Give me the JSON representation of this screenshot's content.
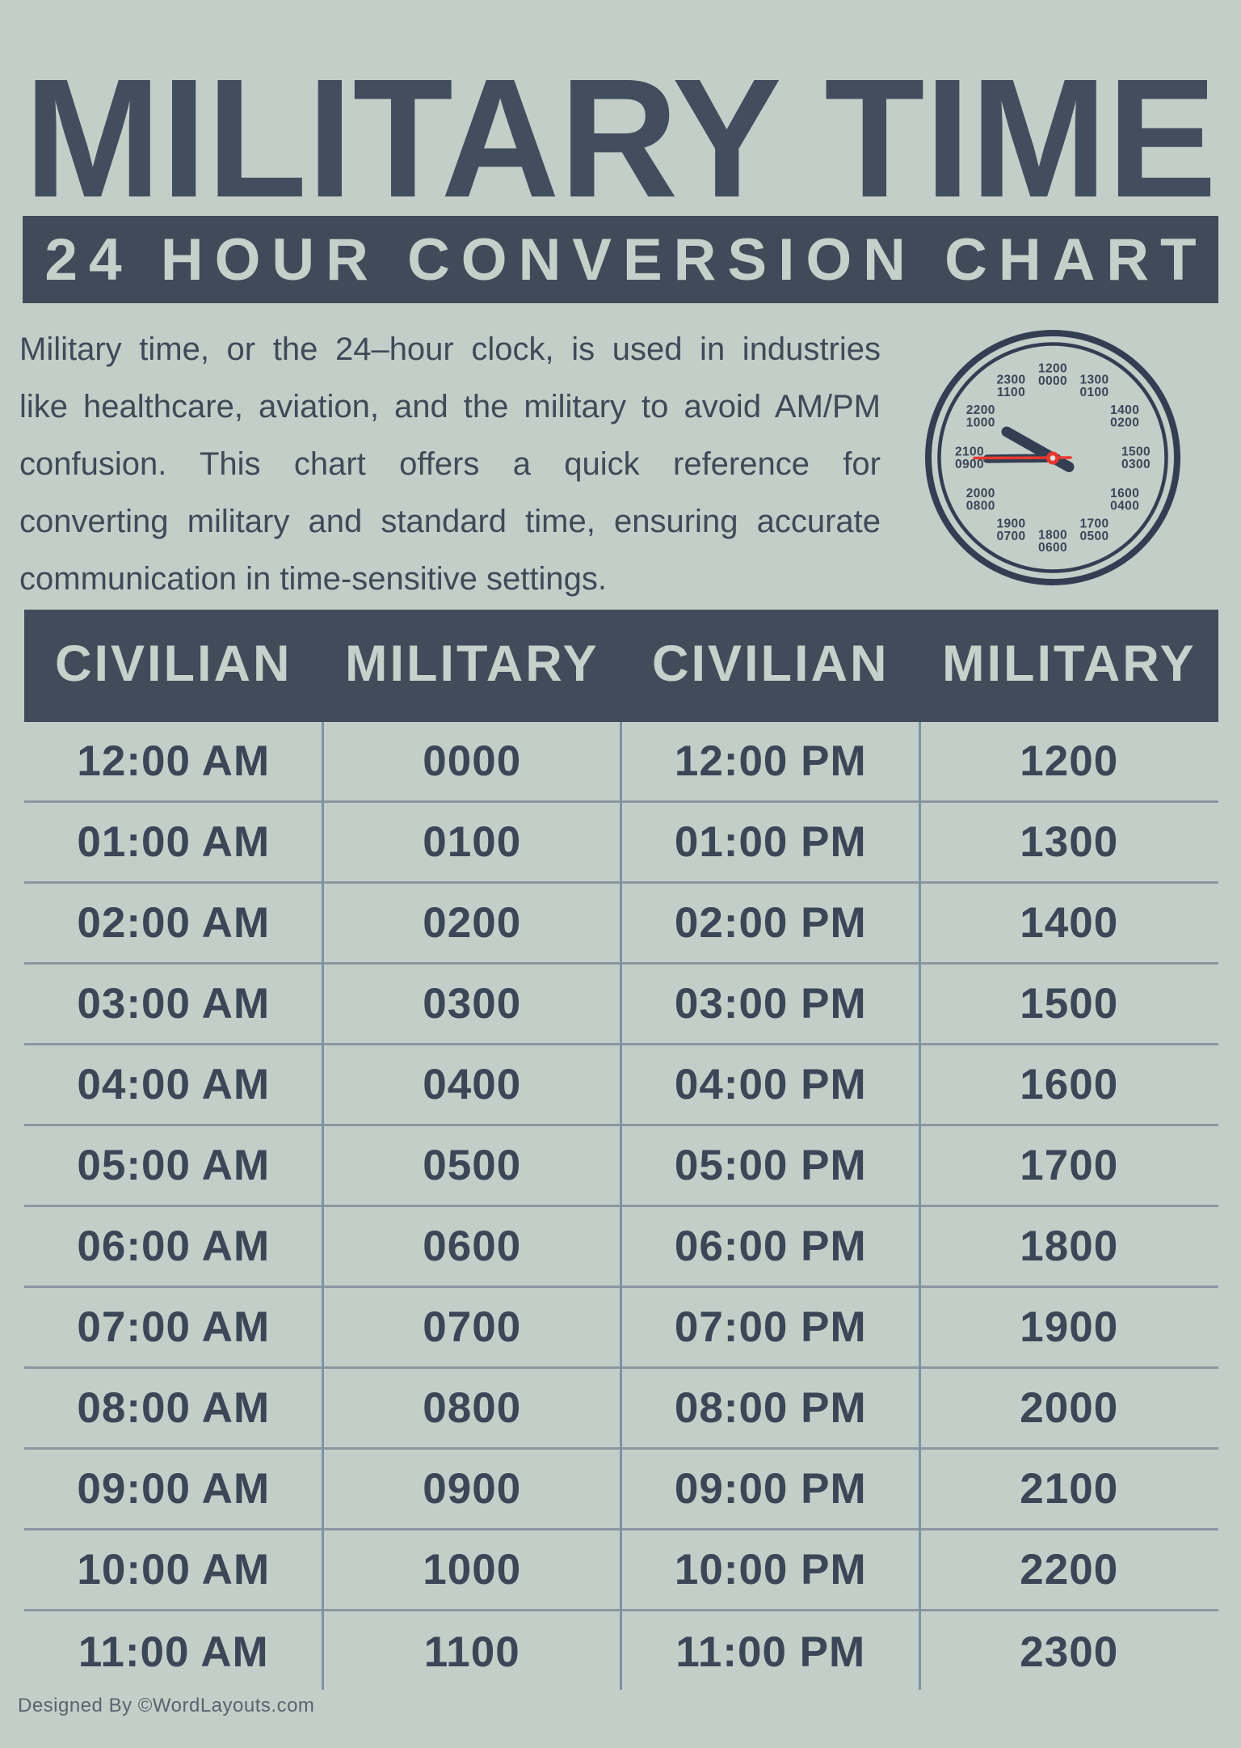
{
  "title": "MILITARY TIME",
  "banner": {
    "text": "24 HOUR CONVERSION CHART",
    "bg_color": "#404a58",
    "text_color": "#c5d0ca"
  },
  "intro": {
    "lines": [
      "Military time, or the 24–hour clock, is used in industries",
      "like healthcare, aviation, and the military to avoid AM/PM",
      "confusion. This chart offers a quick reference for",
      "converting military and standard time, ensuring accurate",
      "communication in time-sensitive settings."
    ]
  },
  "clock": {
    "labels": [
      [
        "1200",
        "0000"
      ],
      [
        "1300",
        "0100"
      ],
      [
        "1400",
        "0200"
      ],
      [
        "1500",
        "0300"
      ],
      [
        "1600",
        "0400"
      ],
      [
        "1700",
        "0500"
      ],
      [
        "1800",
        "0600"
      ],
      [
        "1900",
        "0700"
      ],
      [
        "2000",
        "0800"
      ],
      [
        "2100",
        "0900"
      ],
      [
        "2200",
        "1000"
      ],
      [
        "2300",
        "1100"
      ]
    ],
    "ring_color": "#333e53",
    "hand_color": "#333e53",
    "second_hand_color": "#e8382e"
  },
  "table": {
    "headers": [
      "CIVILIAN",
      "MILITARY",
      "CIVILIAN",
      "MILITARY"
    ],
    "rows": [
      [
        "12:00 AM",
        "0000",
        "12:00 PM",
        "1200"
      ],
      [
        "01:00 AM",
        "0100",
        "01:00 PM",
        "1300"
      ],
      [
        "02:00 AM",
        "0200",
        "02:00 PM",
        "1400"
      ],
      [
        "03:00 AM",
        "0300",
        "03:00 PM",
        "1500"
      ],
      [
        "04:00 AM",
        "0400",
        "04:00 PM",
        "1600"
      ],
      [
        "05:00 AM",
        "0500",
        "05:00 PM",
        "1700"
      ],
      [
        "06:00 AM",
        "0600",
        "06:00 PM",
        "1800"
      ],
      [
        "07:00 AM",
        "0700",
        "07:00 PM",
        "1900"
      ],
      [
        "08:00 AM",
        "0800",
        "08:00 PM",
        "2000"
      ],
      [
        "09:00 AM",
        "0900",
        "09:00 PM",
        "2100"
      ],
      [
        "10:00 AM",
        "1000",
        "10:00 PM",
        "2200"
      ],
      [
        "11:00 AM",
        "1100",
        "11:00 PM",
        "2300"
      ]
    ],
    "header_bg": "#414b59",
    "row_line_color": "#8a97a0",
    "divider_color": "#7e93a4",
    "page_bg": "#c3cec9"
  },
  "footer": {
    "credit": "Designed By ©WordLayouts.com"
  }
}
